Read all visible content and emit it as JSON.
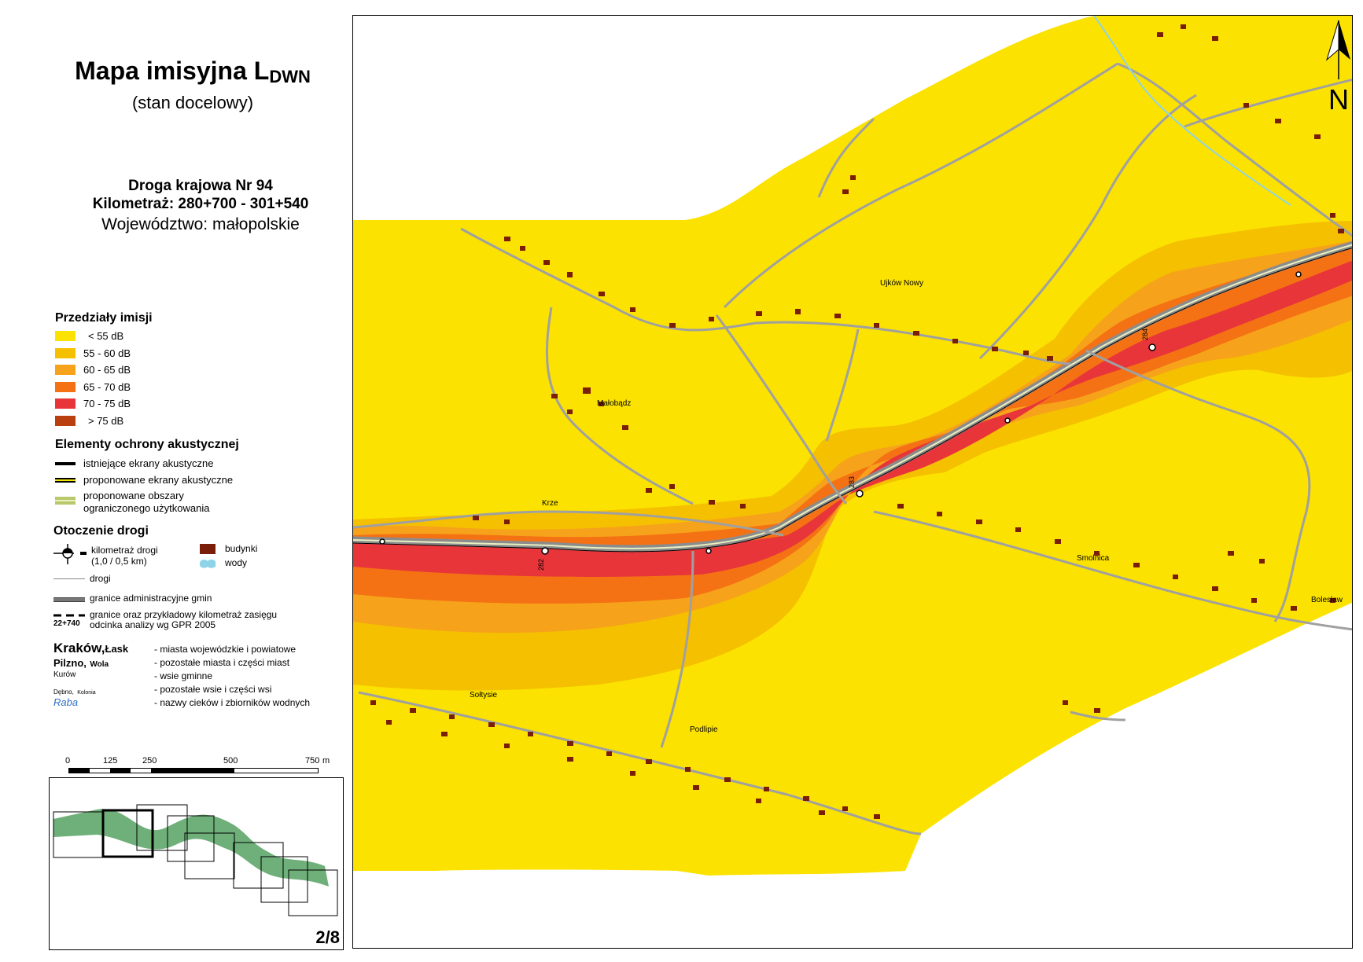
{
  "header": {
    "title": "Mapa imisyjna L",
    "title_sub": "DWN",
    "subtitle": "(stan docelowy)",
    "road_line1": "Droga krajowa Nr 94",
    "road_line2": "Kilometraż: 280+700 - 301+540",
    "road_line3": "Województwo: małopolskie"
  },
  "legend": {
    "imission_title": "Przedziały imisji",
    "imission_classes": [
      {
        "label": "< 55 dB",
        "color": "#FBE200"
      },
      {
        "label": "55 - 60 dB",
        "color": "#F5C000"
      },
      {
        "label": "60 - 65 dB",
        "color": "#F7A21B"
      },
      {
        "label": "65 - 70 dB",
        "color": "#F47214"
      },
      {
        "label": "70 - 75 dB",
        "color": "#E8353A"
      },
      {
        "label": "> 75 dB",
        "color": "#B9400E"
      }
    ],
    "protection_title": "Elementy ochrony akustycznej",
    "protection_items": [
      "istniejące ekrany akustyczne",
      "proponowane ekrany akustyczne",
      "proponowane obszary",
      "ograniczonego użytkowania"
    ],
    "surroundings_title": "Otoczenie drogi",
    "km_label_1": "kilometraż drogi",
    "km_label_2": "(1,0 / 0,5 km)",
    "buildings": "budynki",
    "water": "wody",
    "roads": "drogi",
    "admin_borders": "granice administracyjne gmin",
    "analysis_1": "granice oraz przykładowy kilometraż zasięgu",
    "analysis_2": "odcinka analizy wg GPR 2005",
    "analysis_km": "22+740",
    "typography": [
      {
        "sample": "Kraków,",
        "sample2": "Łask",
        "desc": "- miasta wojewódzkie i powiatowe"
      },
      {
        "sample": "Pilzno,",
        "sample2": "Wola",
        "desc": "- pozostałe miasta i części miast"
      },
      {
        "sample": "Kurów",
        "sample2": "",
        "desc": "- wsie gminne"
      },
      {
        "sample": "Dębno,",
        "sample2": "Kolonia",
        "desc": "- pozostałe wsie i części wsi"
      },
      {
        "sample": "Raba",
        "sample2": "",
        "desc": "- nazwy cieków i zbiorników wodnych"
      }
    ]
  },
  "scale": {
    "ticks": [
      "0",
      "125",
      "250",
      "500",
      "750"
    ],
    "unit": "m"
  },
  "overview": {
    "sheet_label": "2/8",
    "corridor_color": "#6FAF7A"
  },
  "map": {
    "north_label": "N",
    "places": [
      "Ujków Nowy",
      "Małobądz",
      "Krze",
      "Sołtysie",
      "Podlipie",
      "Bolesław",
      "Smolnica"
    ],
    "km_labels": [
      "282",
      "283",
      "284"
    ]
  },
  "colors": {
    "lt55": "#FBE200",
    "c55_60": "#F5C000",
    "c60_65": "#F7A21B",
    "c65_70": "#F47214",
    "c70_75": "#E8353A",
    "gt75": "#B9400E",
    "building": "#7A1E0A",
    "road": "#9A9A9A",
    "water": "#8FD3E8"
  }
}
